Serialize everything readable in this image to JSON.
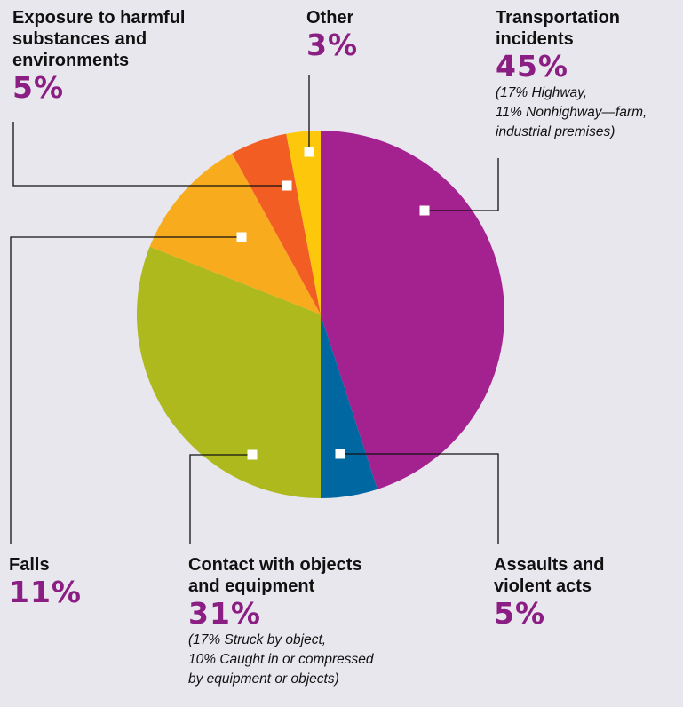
{
  "chart_data": {
    "type": "pie",
    "start": "12 o'clock, clockwise",
    "slices": [
      {
        "key": "transport",
        "label": "Transportation incidents",
        "value": 45,
        "display": "45%",
        "note": [
          "(17% Highway,",
          "11% Nonhighway—farm,",
          "industrial premises)"
        ],
        "color": "#a4228f"
      },
      {
        "key": "assaults",
        "label": "Assaults and violent acts",
        "value": 5,
        "display": "5%",
        "color": "#0067a1"
      },
      {
        "key": "contact",
        "label": "Contact with objects and equipment",
        "value": 31,
        "display": "31%",
        "note": [
          "(17% Struck by object,",
          "10% Caught in or compressed",
          "by equipment or objects)"
        ],
        "color": "#aeb91e"
      },
      {
        "key": "falls",
        "label": "Falls",
        "value": 11,
        "display": "11%",
        "color": "#f9ab1e"
      },
      {
        "key": "exposure",
        "label": "Exposure to harmful substances and environments",
        "value": 5,
        "display": "5%",
        "color": "#f15d22"
      },
      {
        "key": "other",
        "label": "Other",
        "value": 3,
        "display": "3%",
        "color": "#fdc70c"
      }
    ]
  },
  "labels": {
    "exposure": {
      "name": [
        "Exposure to harmful",
        "substances and",
        "environments"
      ],
      "pct": "5%"
    },
    "other": {
      "name": [
        "Other"
      ],
      "pct": "3%"
    },
    "transport": {
      "name": [
        "Transportation",
        "incidents"
      ],
      "pct": "45%",
      "note": [
        "(17% Highway,",
        "11% Nonhighway—farm,",
        "industrial premises)"
      ]
    },
    "falls": {
      "name": [
        "Falls"
      ],
      "pct": "11%"
    },
    "contact": {
      "name": [
        "Contact with objects",
        "and equipment"
      ],
      "pct": "31%",
      "note": [
        "(17% Struck by object,",
        "10% Caught in or compressed",
        "by equipment or objects)"
      ]
    },
    "assaults": {
      "name": [
        "Assaults and",
        "violent acts"
      ],
      "pct": "5%"
    }
  },
  "colors": {
    "background": "#e8e7ee",
    "percent_text": "#8b1e83",
    "leader_line": "#111111",
    "marker": "#ffffff"
  }
}
